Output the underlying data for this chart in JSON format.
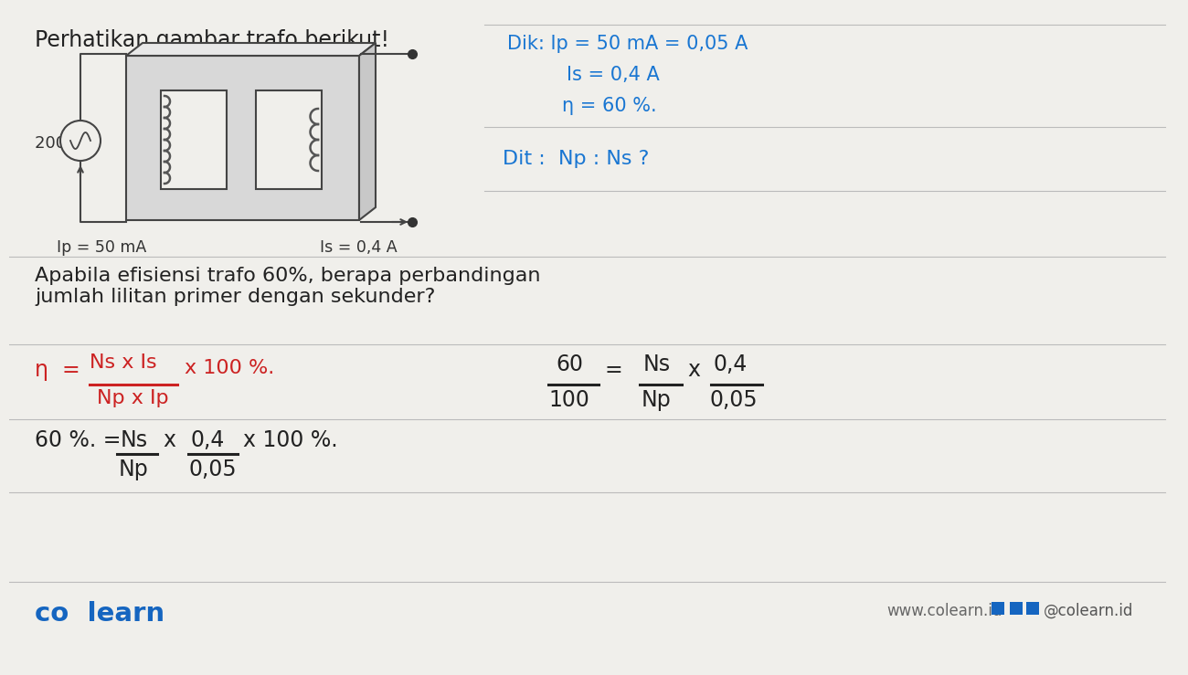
{
  "bg_color": "#f0efeb",
  "title_text": "Perhatikan gambar trafo berikut!",
  "question_text": "Apabila efisiensi trafo 60%, berapa perbandingan\njumlah lilitan primer dengan sekunder?",
  "dik_line1": "Dik: Ip = 50 mA = 0,05 A",
  "dik_line2": "Is = 0,4 A",
  "dik_line3": "η = 60 %.",
  "dit_text": "Dit :  Np : Ns ?",
  "voltage_label": "200 V",
  "ip_label": "Ip = 50 mA",
  "is_label": "Is = 0,4 A",
  "colearn_text": "co  learn",
  "website_text": "www.colearn.id",
  "social_text": "@colearn.id",
  "dik_color": "#1976D2",
  "dit_color": "#1976D2",
  "formula_color_red": "#cc2222",
  "formula_color_black": "#222222",
  "line_color": "#bbbbbb",
  "colearn_color": "#1565C0"
}
